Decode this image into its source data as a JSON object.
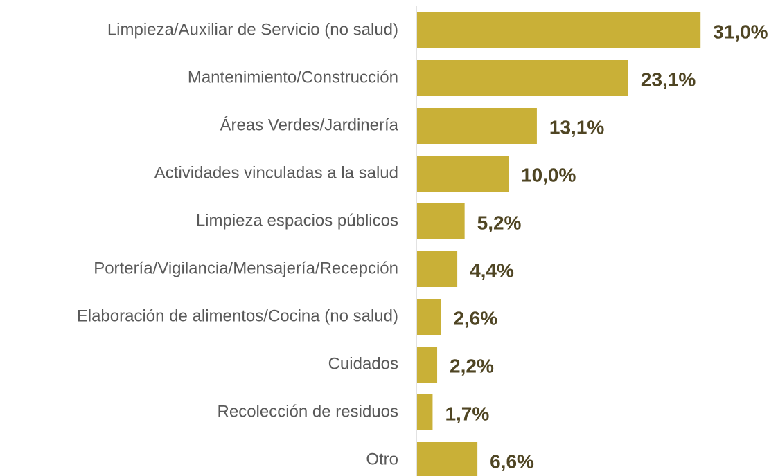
{
  "chart_data": {
    "type": "bar",
    "orientation": "horizontal",
    "categories": [
      "Limpieza/Auxiliar de Servicio (no salud)",
      "Mantenimiento/Construcción",
      "Áreas Verdes/Jardinería",
      "Actividades vinculadas a la salud",
      "Limpieza espacios públicos",
      "Portería/Vigilancia/Mensajería/Recepción",
      "Elaboración de alimentos/Cocina (no salud)",
      "Cuidados",
      "Recolección de residuos",
      "Otro"
    ],
    "values": [
      31.0,
      23.1,
      13.1,
      10.0,
      5.2,
      4.4,
      2.6,
      2.2,
      1.7,
      6.6
    ],
    "value_labels": [
      "31,0%",
      "23,1%",
      "13,1%",
      "10,0%",
      "5,2%",
      "4,4%",
      "2,6%",
      "2,2%",
      "1,7%",
      "6,6%"
    ],
    "color": "#c9b037"
  }
}
